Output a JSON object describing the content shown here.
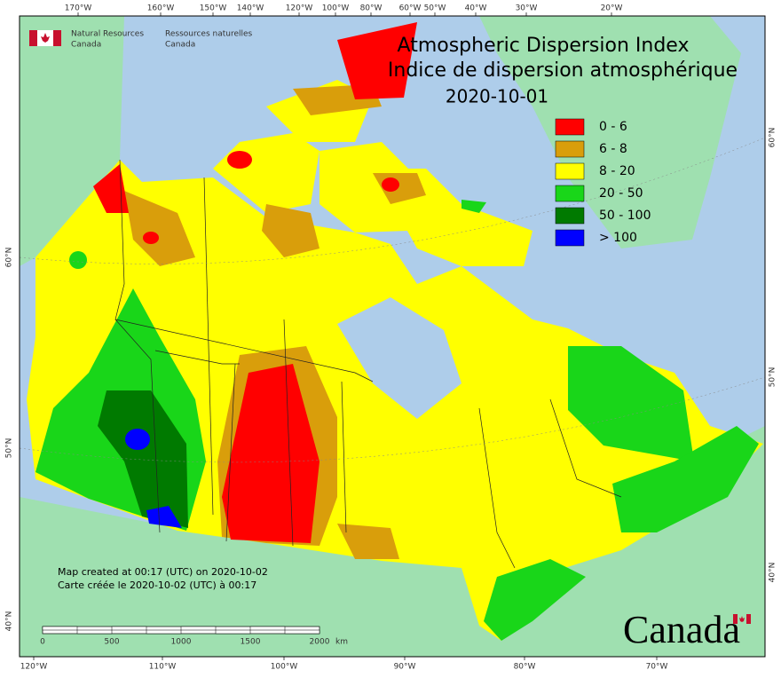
{
  "logo": {
    "en": [
      "Natural Resources",
      "Canada"
    ],
    "fr": [
      "Ressources naturelles",
      "Canada"
    ]
  },
  "title": {
    "en": "Atmospheric Dispersion Index",
    "fr": "Indice de dispersion atmosphérique",
    "date": "2020-10-01"
  },
  "legend": [
    {
      "label": "0 - 6",
      "color": "#ff0000"
    },
    {
      "label": "6 - 8",
      "color": "#d99e0b"
    },
    {
      "label": "8 - 20",
      "color": "#ffff00"
    },
    {
      "label": "20 - 50",
      "color": "#19d619"
    },
    {
      "label": "50 - 100",
      "color": "#007a00"
    },
    {
      "label": "> 100",
      "color": "#0000ff"
    }
  ],
  "top_longitudes": [
    "170°W",
    "160°W",
    "150°W",
    "140°W",
    "120°W",
    "100°W",
    "80°W",
    "60°W",
    "50°W",
    "40°W",
    "30°W",
    "20°W"
  ],
  "bottom_longitudes": [
    "120°W",
    "110°W",
    "100°W",
    "90°W",
    "80°W",
    "70°W"
  ],
  "left_latitudes": [
    "60°N",
    "50°N",
    "40°N"
  ],
  "right_latitudes": [
    "60°N",
    "50°N",
    "40°N"
  ],
  "scale": {
    "labels": [
      "0",
      "500",
      "1000",
      "1500",
      "2000"
    ],
    "unit": "km"
  },
  "notes": [
    "Map created at 00:17 (UTC) on 2020-10-02",
    "Carte créée le 2020-10-02 (UTC) à 00:17"
  ],
  "wordmark": "Canada"
}
